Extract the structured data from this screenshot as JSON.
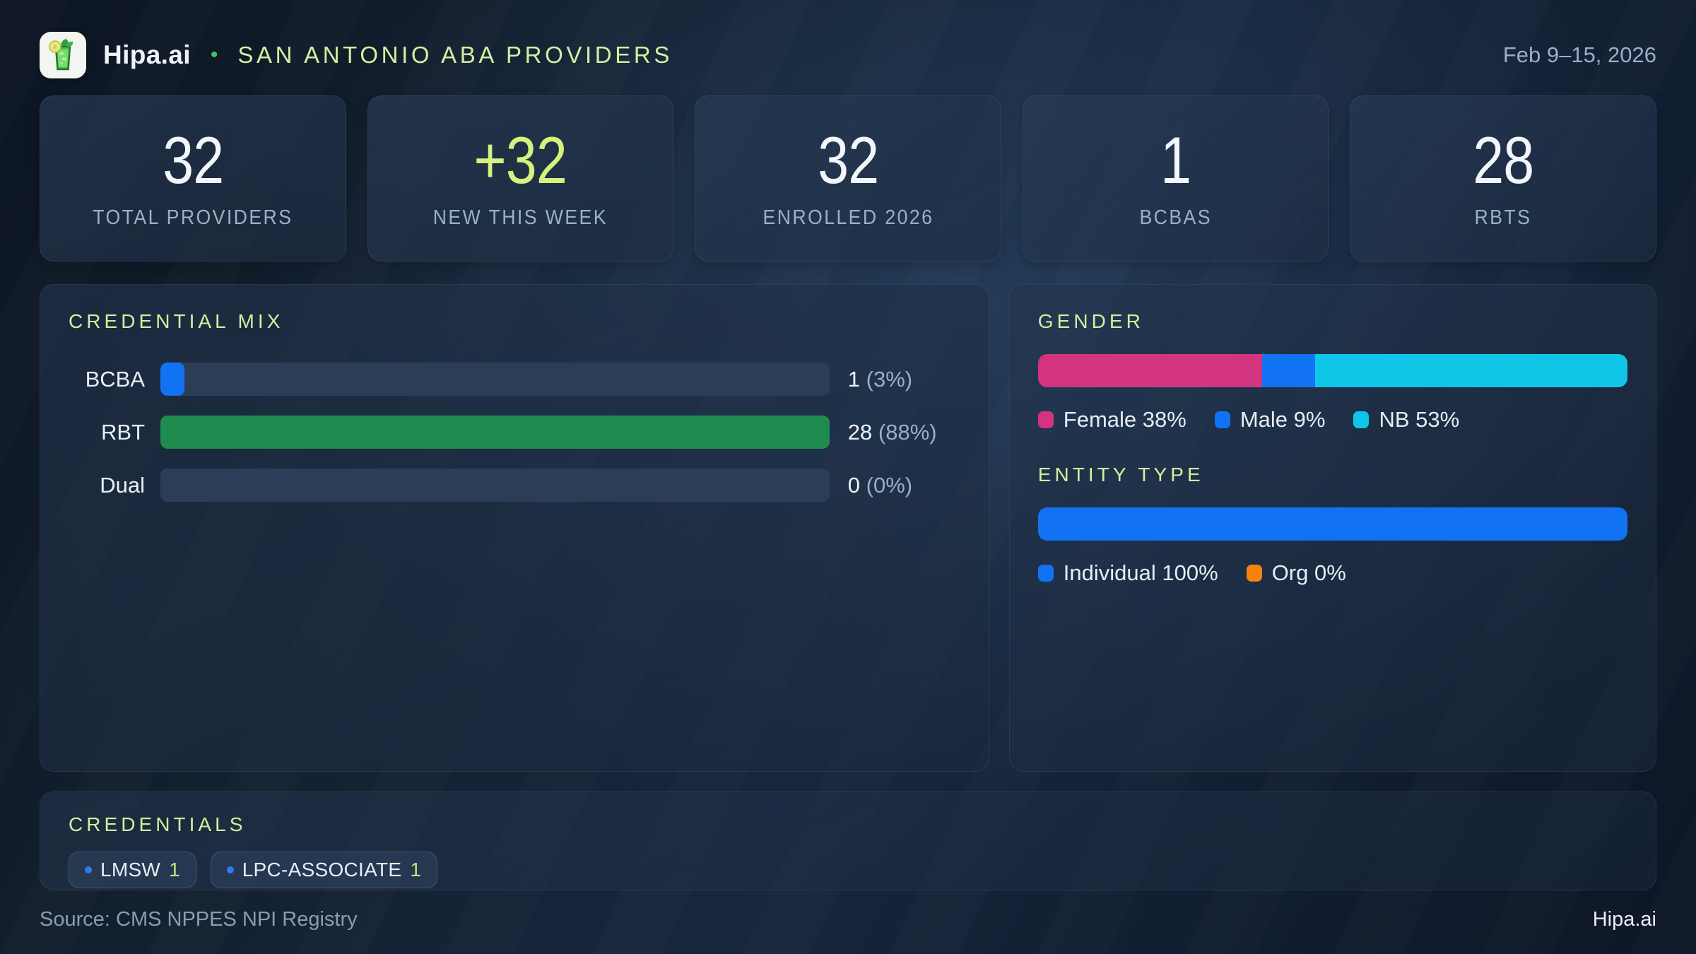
{
  "header": {
    "brand": "Hipa.ai",
    "separator": "•",
    "title": "SAN ANTONIO ABA PROVIDERS",
    "date_range": "Feb 9–15, 2026",
    "logo_icon": "mojito-glass-icon"
  },
  "stats": [
    {
      "value": "32",
      "label": "TOTAL PROVIDERS",
      "accent": false
    },
    {
      "value": "+32",
      "label": "NEW THIS WEEK",
      "accent": true
    },
    {
      "value": "32",
      "label": "ENROLLED 2026",
      "accent": false
    },
    {
      "value": "1",
      "label": "BCBAS",
      "accent": false
    },
    {
      "value": "28",
      "label": "RBTS",
      "accent": false
    }
  ],
  "credential_mix": {
    "title": "CREDENTIAL MIX",
    "rows": [
      {
        "label": "BCBA",
        "count": "1",
        "pct": "(3%)",
        "bar_pct": 3.6,
        "color": "#1173f4"
      },
      {
        "label": "RBT",
        "count": "28",
        "pct": "(88%)",
        "bar_pct": 100,
        "color": "#1f8b4e"
      },
      {
        "label": "Dual",
        "count": "0",
        "pct": "(0%)",
        "bar_pct": 0,
        "color": "#1173f4"
      }
    ]
  },
  "gender": {
    "title": "GENDER",
    "segments": [
      {
        "label": "Female",
        "pct": 38,
        "color": "#d23480"
      },
      {
        "label": "Male",
        "pct": 9,
        "color": "#1173f4"
      },
      {
        "label": "NB",
        "pct": 53,
        "color": "#0fc6e9"
      }
    ]
  },
  "entity_type": {
    "title": "ENTITY TYPE",
    "segments": [
      {
        "label": "Individual",
        "pct": 100,
        "color": "#1173f4"
      },
      {
        "label": "Org",
        "pct": 0,
        "color": "#f8820e"
      }
    ]
  },
  "credentials": {
    "title": "CREDENTIALS",
    "chips": [
      {
        "label": "LMSW",
        "count": "1"
      },
      {
        "label": "LPC-ASSOCIATE",
        "count": "1"
      }
    ]
  },
  "footer": {
    "source": "Source: CMS NPPES NPI Registry",
    "brand": "Hipa.ai"
  },
  "colors": {
    "accent_lime": "#d6f17d",
    "title_lime": "#d3efa0",
    "blue": "#1173f4",
    "green": "#1f8b4e",
    "pink": "#d23480",
    "cyan": "#0fc6e9",
    "orange": "#f8820e",
    "muted_text": "#9baec4"
  },
  "chart_data": [
    {
      "type": "bar",
      "title": "CREDENTIAL MIX",
      "orientation": "horizontal",
      "categories": [
        "BCBA",
        "RBT",
        "Dual"
      ],
      "values": [
        1,
        28,
        0
      ],
      "value_labels": [
        "1 (3%)",
        "28 (88%)",
        "0 (0%)"
      ],
      "xlim": [
        0,
        28
      ],
      "grid": false,
      "legend_position": "none"
    },
    {
      "type": "bar",
      "title": "GENDER",
      "stacked": true,
      "unit": "%",
      "categories": [
        "Gender"
      ],
      "series": [
        {
          "name": "Female",
          "values": [
            38
          ]
        },
        {
          "name": "Male",
          "values": [
            9
          ]
        },
        {
          "name": "NB",
          "values": [
            53
          ]
        }
      ],
      "legend_position": "bottom"
    },
    {
      "type": "bar",
      "title": "ENTITY TYPE",
      "stacked": true,
      "unit": "%",
      "categories": [
        "Entity"
      ],
      "series": [
        {
          "name": "Individual",
          "values": [
            100
          ]
        },
        {
          "name": "Org",
          "values": [
            0
          ]
        }
      ],
      "legend_position": "bottom"
    }
  ]
}
